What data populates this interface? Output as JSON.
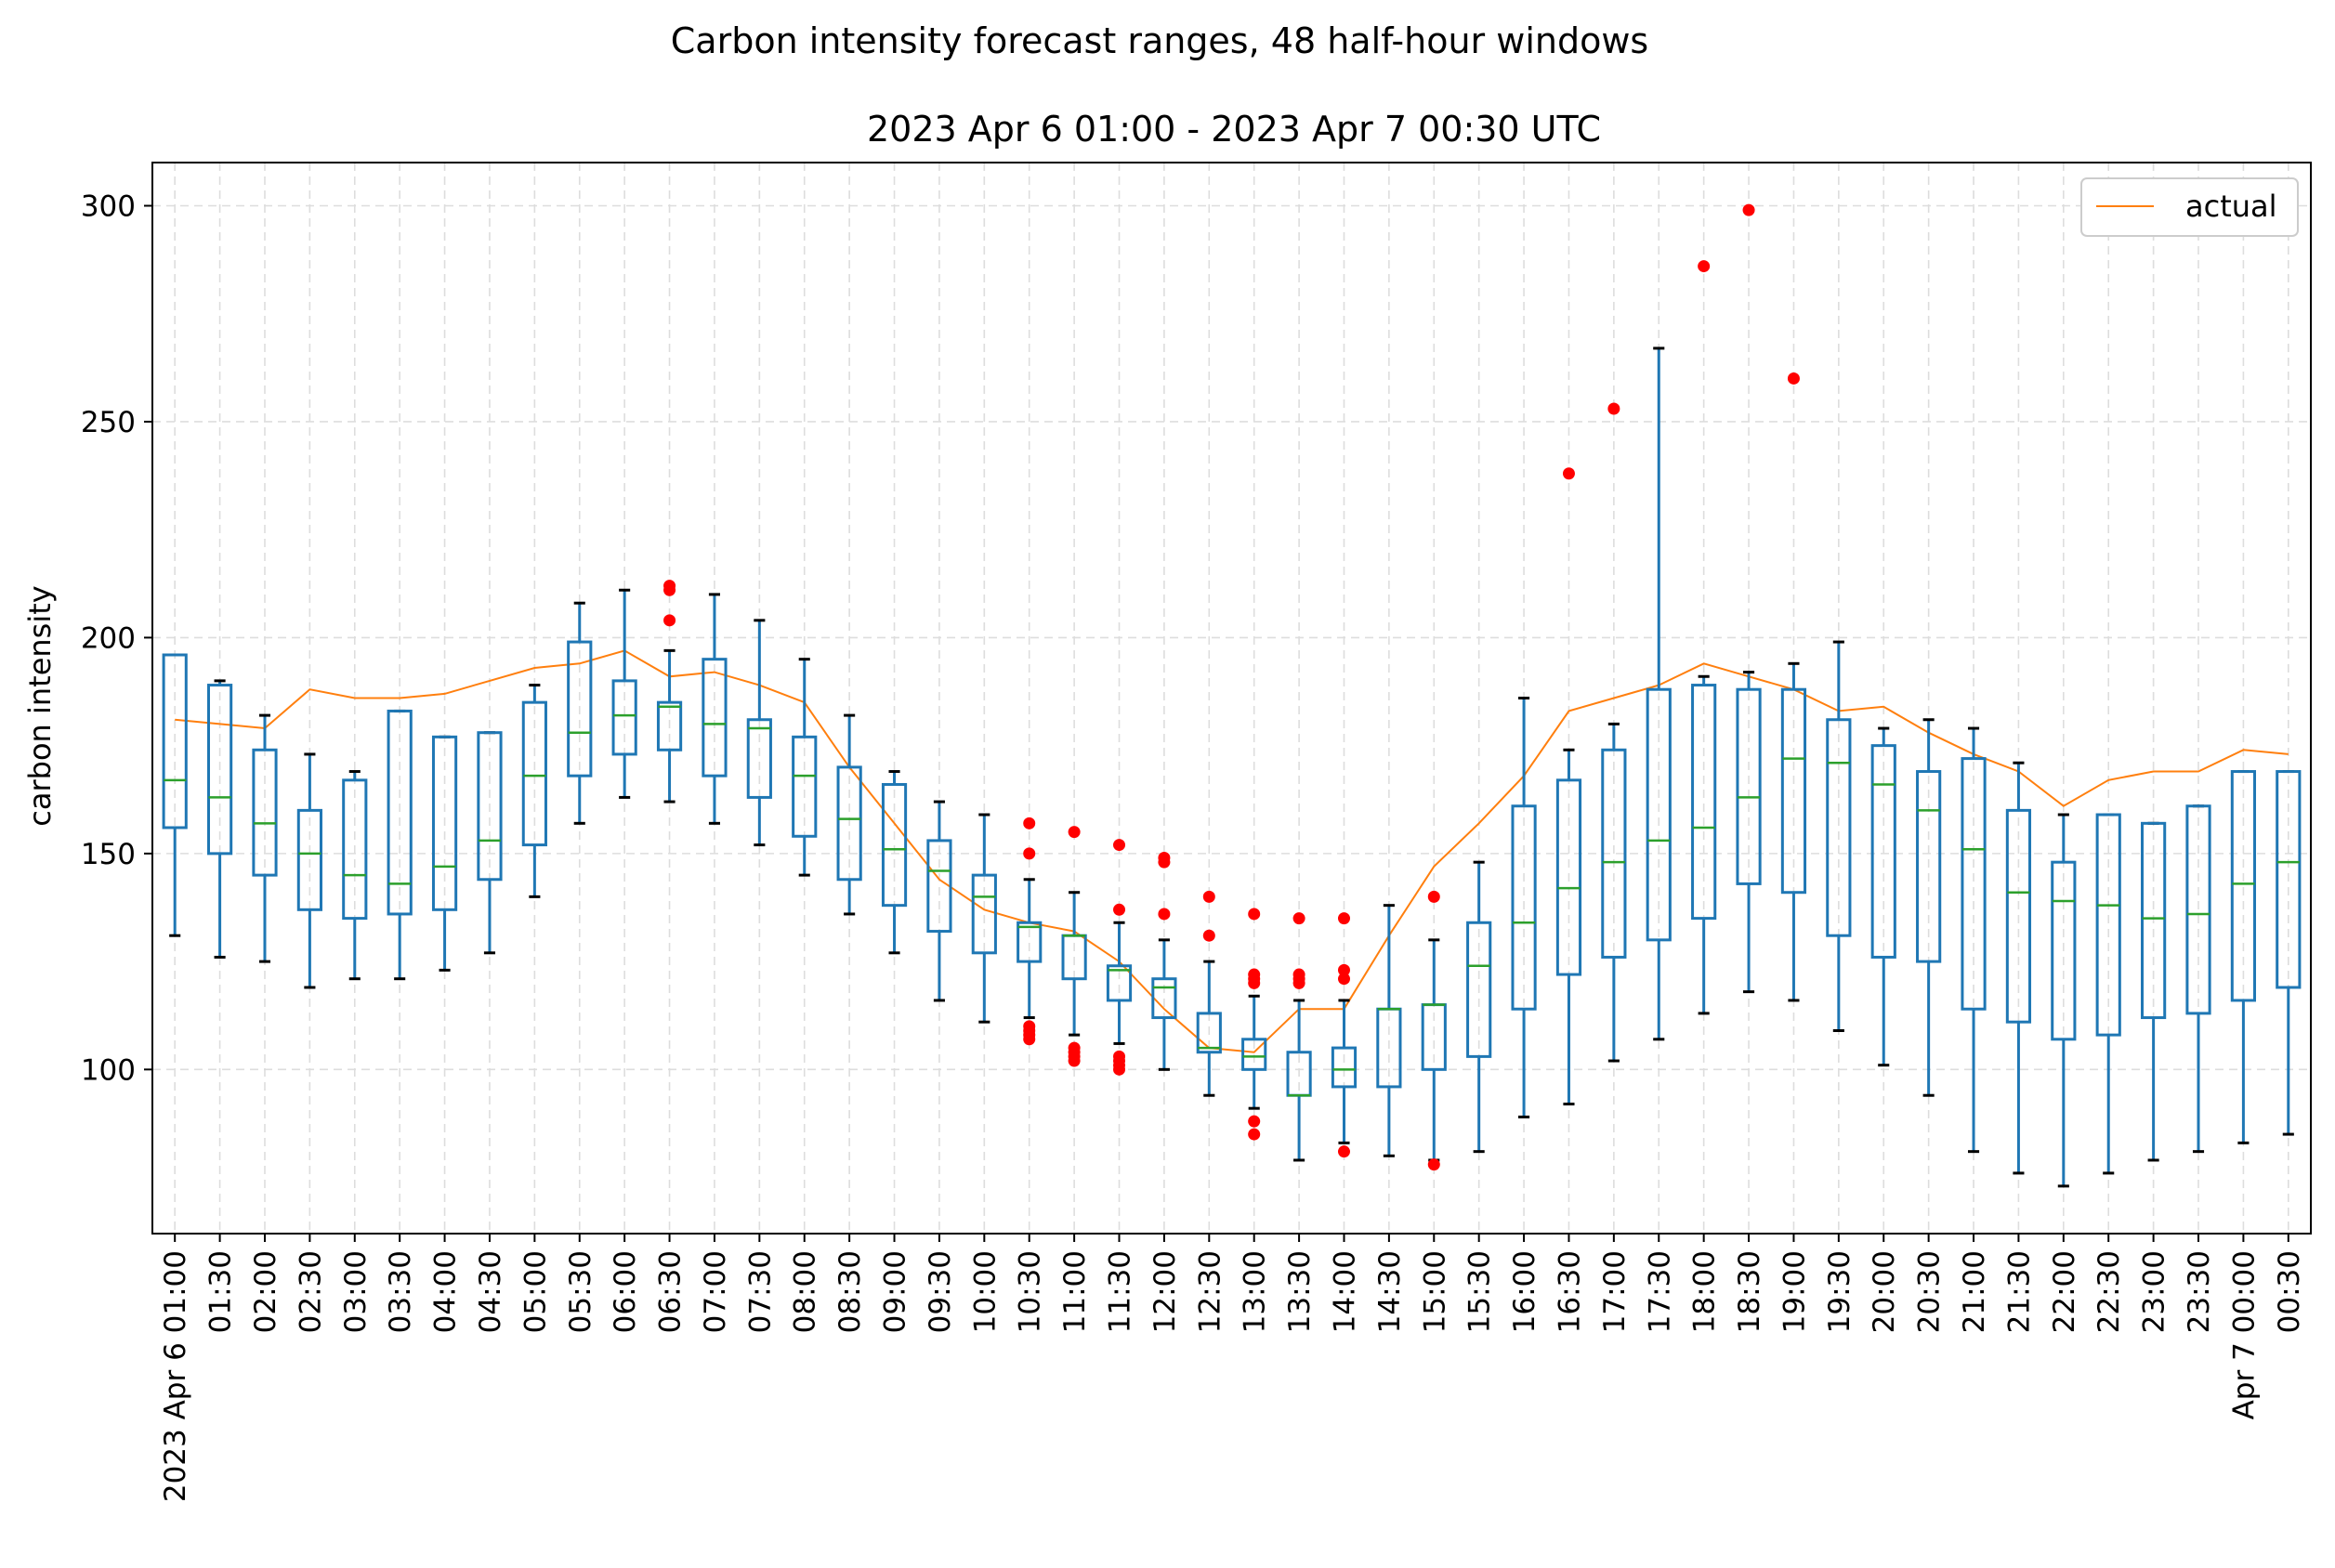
{
  "chart_data": {
    "type": "box",
    "suptitle": "Carbon intensity forecast ranges, 48 half-hour windows",
    "title": "2023 Apr 6 01:00 - 2023 Apr 7 00:30 UTC",
    "xlabel": "",
    "ylabel": "carbon intensity",
    "ylim": [
      62,
      310
    ],
    "yticks": [
      100,
      150,
      200,
      250,
      300
    ],
    "grid": true,
    "legend": {
      "position": "top-right",
      "entries": [
        "actual"
      ]
    },
    "colors": {
      "box": "#1f77b4",
      "median": "#2ca02c",
      "actual": "#ff7f0e",
      "outlier": "#ff0000",
      "whisker_cap": "#000000"
    },
    "categories": [
      "2023 Apr 6 01:00",
      "01:30",
      "02:00",
      "02:30",
      "03:00",
      "03:30",
      "04:00",
      "04:30",
      "05:00",
      "05:30",
      "06:00",
      "06:30",
      "07:00",
      "07:30",
      "08:00",
      "08:30",
      "09:00",
      "09:30",
      "10:00",
      "10:30",
      "11:00",
      "11:30",
      "12:00",
      "12:30",
      "13:00",
      "13:30",
      "14:00",
      "14:30",
      "15:00",
      "15:30",
      "16:00",
      "16:30",
      "17:00",
      "17:30",
      "18:00",
      "18:30",
      "19:00",
      "19:30",
      "20:00",
      "20:30",
      "21:00",
      "21:30",
      "22:00",
      "22:30",
      "23:00",
      "23:30",
      "Apr 7 00:00",
      "00:30"
    ],
    "boxes": [
      {
        "whislo": 131,
        "q1": 156,
        "med": 167,
        "q3": 196,
        "whishi": 196,
        "fliers": []
      },
      {
        "whislo": 126,
        "q1": 150,
        "med": 163,
        "q3": 189,
        "whishi": 190,
        "fliers": []
      },
      {
        "whislo": 125,
        "q1": 145,
        "med": 157,
        "q3": 174,
        "whishi": 182,
        "fliers": []
      },
      {
        "whislo": 119,
        "q1": 137,
        "med": 150,
        "q3": 160,
        "whishi": 173,
        "fliers": []
      },
      {
        "whislo": 121,
        "q1": 135,
        "med": 145,
        "q3": 167,
        "whishi": 169,
        "fliers": []
      },
      {
        "whislo": 121,
        "q1": 136,
        "med": 143,
        "q3": 183,
        "whishi": 183,
        "fliers": []
      },
      {
        "whislo": 123,
        "q1": 137,
        "med": 147,
        "q3": 177,
        "whishi": 177,
        "fliers": []
      },
      {
        "whislo": 127,
        "q1": 144,
        "med": 153,
        "q3": 178,
        "whishi": 178,
        "fliers": []
      },
      {
        "whislo": 140,
        "q1": 152,
        "med": 168,
        "q3": 185,
        "whishi": 189,
        "fliers": []
      },
      {
        "whislo": 157,
        "q1": 168,
        "med": 178,
        "q3": 199,
        "whishi": 208,
        "fliers": []
      },
      {
        "whislo": 163,
        "q1": 173,
        "med": 182,
        "q3": 190,
        "whishi": 211,
        "fliers": []
      },
      {
        "whislo": 162,
        "q1": 174,
        "med": 184,
        "q3": 185,
        "whishi": 197,
        "fliers": [
          204,
          211,
          212
        ]
      },
      {
        "whislo": 157,
        "q1": 168,
        "med": 180,
        "q3": 195,
        "whishi": 210,
        "fliers": []
      },
      {
        "whislo": 152,
        "q1": 163,
        "med": 179,
        "q3": 181,
        "whishi": 204,
        "fliers": []
      },
      {
        "whislo": 145,
        "q1": 154,
        "med": 168,
        "q3": 177,
        "whishi": 195,
        "fliers": []
      },
      {
        "whislo": 136,
        "q1": 144,
        "med": 158,
        "q3": 170,
        "whishi": 182,
        "fliers": []
      },
      {
        "whislo": 127,
        "q1": 138,
        "med": 151,
        "q3": 166,
        "whishi": 169,
        "fliers": []
      },
      {
        "whislo": 116,
        "q1": 132,
        "med": 146,
        "q3": 153,
        "whishi": 162,
        "fliers": []
      },
      {
        "whislo": 111,
        "q1": 127,
        "med": 140,
        "q3": 145,
        "whishi": 159,
        "fliers": []
      },
      {
        "whislo": 112,
        "q1": 125,
        "med": 133,
        "q3": 134,
        "whishi": 144,
        "fliers": [
          107,
          108,
          109,
          110,
          157,
          150
        ]
      },
      {
        "whislo": 108,
        "q1": 121,
        "med": 131,
        "q3": 131,
        "whishi": 141,
        "fliers": [
          102,
          103,
          104,
          105,
          155
        ]
      },
      {
        "whislo": 106,
        "q1": 116,
        "med": 123,
        "q3": 124,
        "whishi": 134,
        "fliers": [
          100,
          101,
          102,
          103,
          137,
          152
        ]
      },
      {
        "whislo": 100,
        "q1": 112,
        "med": 119,
        "q3": 121,
        "whishi": 130,
        "fliers": [
          136,
          148,
          149
        ]
      },
      {
        "whislo": 94,
        "q1": 104,
        "med": 105,
        "q3": 113,
        "whishi": 125,
        "fliers": [
          131,
          140
        ]
      },
      {
        "whislo": 91,
        "q1": 100,
        "med": 103,
        "q3": 107,
        "whishi": 117,
        "fliers": [
          85,
          88,
          120,
          121,
          122,
          136
        ]
      },
      {
        "whislo": 79,
        "q1": 94,
        "med": 94,
        "q3": 104,
        "whishi": 116,
        "fliers": [
          120,
          121,
          122,
          135
        ]
      },
      {
        "whislo": 83,
        "q1": 96,
        "med": 100,
        "q3": 105,
        "whishi": 116,
        "fliers": [
          81,
          121,
          123,
          135
        ]
      },
      {
        "whislo": 80,
        "q1": 96,
        "med": 114,
        "q3": 114,
        "whishi": 138,
        "fliers": []
      },
      {
        "whislo": 79,
        "q1": 100,
        "med": 115,
        "q3": 115,
        "whishi": 130,
        "fliers": [
          78,
          140
        ]
      },
      {
        "whislo": 81,
        "q1": 103,
        "med": 124,
        "q3": 134,
        "whishi": 148,
        "fliers": []
      },
      {
        "whislo": 89,
        "q1": 114,
        "med": 134,
        "q3": 161,
        "whishi": 186,
        "fliers": []
      },
      {
        "whislo": 92,
        "q1": 122,
        "med": 142,
        "q3": 167,
        "whishi": 174,
        "fliers": [
          238
        ]
      },
      {
        "whislo": 102,
        "q1": 126,
        "med": 148,
        "q3": 174,
        "whishi": 180,
        "fliers": [
          253
        ]
      },
      {
        "whislo": 107,
        "q1": 130,
        "med": 153,
        "q3": 188,
        "whishi": 267,
        "fliers": []
      },
      {
        "whislo": 113,
        "q1": 135,
        "med": 156,
        "q3": 189,
        "whishi": 191,
        "fliers": [
          286
        ]
      },
      {
        "whislo": 118,
        "q1": 143,
        "med": 163,
        "q3": 188,
        "whishi": 192,
        "fliers": [
          299
        ]
      },
      {
        "whislo": 116,
        "q1": 141,
        "med": 172,
        "q3": 188,
        "whishi": 194,
        "fliers": [
          260
        ]
      },
      {
        "whislo": 109,
        "q1": 131,
        "med": 171,
        "q3": 181,
        "whishi": 199,
        "fliers": []
      },
      {
        "whislo": 101,
        "q1": 126,
        "med": 166,
        "q3": 175,
        "whishi": 179,
        "fliers": []
      },
      {
        "whislo": 94,
        "q1": 125,
        "med": 160,
        "q3": 169,
        "whishi": 181,
        "fliers": []
      },
      {
        "whislo": 81,
        "q1": 114,
        "med": 151,
        "q3": 172,
        "whishi": 179,
        "fliers": []
      },
      {
        "whislo": 76,
        "q1": 111,
        "med": 141,
        "q3": 160,
        "whishi": 171,
        "fliers": []
      },
      {
        "whislo": 73,
        "q1": 107,
        "med": 139,
        "q3": 148,
        "whishi": 159,
        "fliers": []
      },
      {
        "whislo": 76,
        "q1": 108,
        "med": 138,
        "q3": 159,
        "whishi": 159,
        "fliers": []
      },
      {
        "whislo": 79,
        "q1": 112,
        "med": 135,
        "q3": 157,
        "whishi": 157,
        "fliers": []
      },
      {
        "whislo": 81,
        "q1": 113,
        "med": 136,
        "q3": 161,
        "whishi": 161,
        "fliers": []
      },
      {
        "whislo": 83,
        "q1": 116,
        "med": 143,
        "q3": 169,
        "whishi": 169,
        "fliers": []
      },
      {
        "whislo": 85,
        "q1": 119,
        "med": 148,
        "q3": 169,
        "whishi": 169,
        "fliers": []
      }
    ],
    "series": [
      {
        "name": "actual",
        "type": "line",
        "values": [
          181,
          180,
          179,
          188,
          186,
          186,
          187,
          190,
          193,
          194,
          197,
          191,
          192,
          189,
          185,
          170,
          157,
          144,
          137,
          134,
          132,
          125,
          114,
          105,
          104,
          114,
          114,
          131,
          147,
          157,
          168,
          183,
          186,
          189,
          194,
          191,
          188,
          183,
          184,
          178,
          173,
          169,
          161,
          167,
          169,
          169,
          174,
          173
        ]
      }
    ]
  }
}
